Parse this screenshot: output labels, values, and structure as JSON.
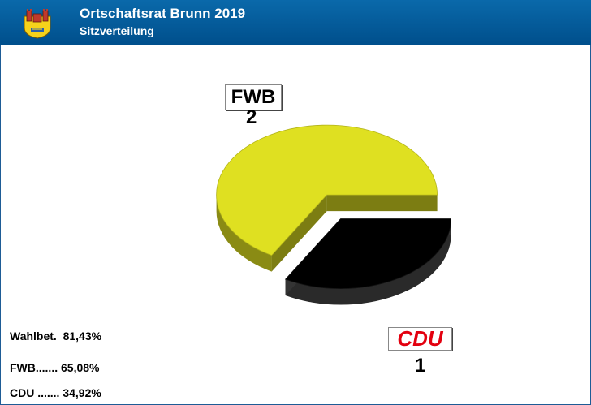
{
  "header": {
    "title": "Ortschaftsrat Brunn 2019",
    "subtitle": "Sitzverteilung"
  },
  "colors": {
    "header_bg": "#005a9c",
    "fwb": "#dfe021",
    "cdu": "#000000",
    "cdu_logo": "#e3000f"
  },
  "chart_data": {
    "type": "pie",
    "title": "Ortschaftsrat Brunn 2019",
    "subtitle": "Sitzverteilung",
    "labels": [
      "FWB",
      "CDU"
    ],
    "values": [
      2,
      1
    ],
    "colors": [
      "#dfe021",
      "#000000"
    ],
    "three_d": true,
    "exploded": true
  },
  "labels": {
    "fwb_name": "FWB",
    "fwb_seats": "2",
    "cdu_name": "CDU",
    "cdu_seats": "1"
  },
  "stats": {
    "turnout": "Wahlbet.  81,43%",
    "fwb": "FWB....... 65,08%",
    "cdu": "CDU ....... 34,92%"
  }
}
